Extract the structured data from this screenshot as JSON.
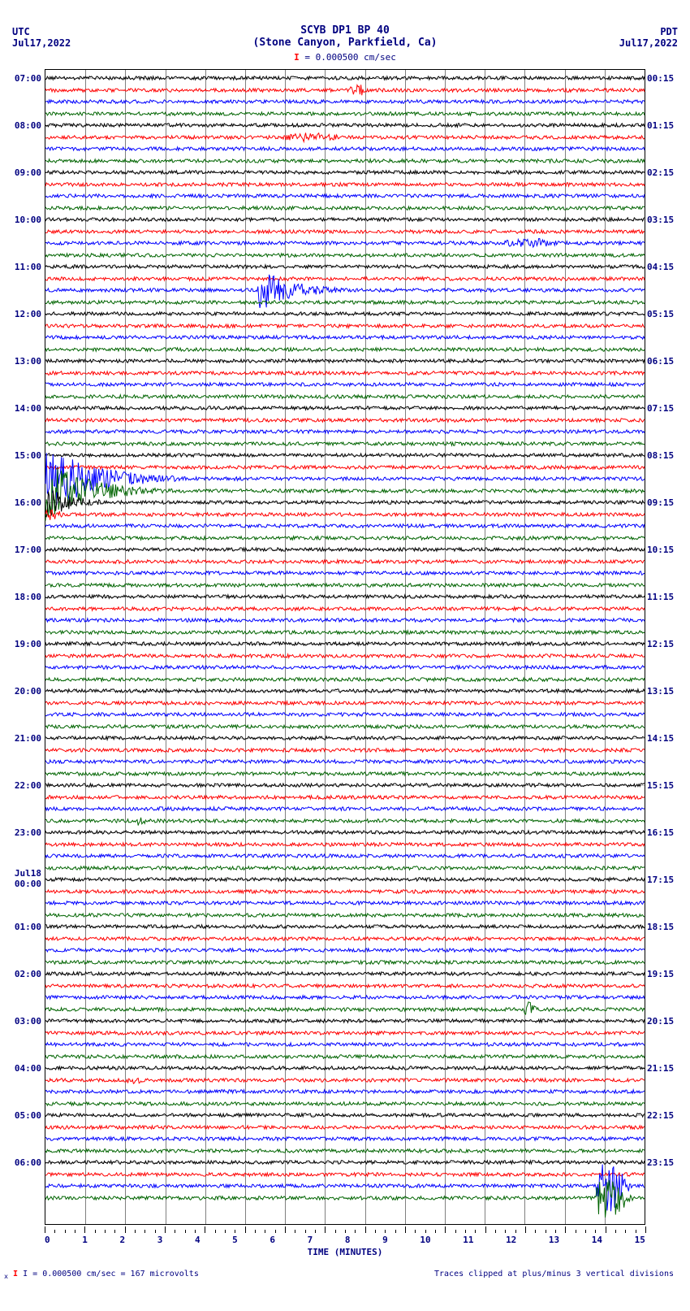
{
  "title_line1": "SCYB DP1 BP 40",
  "title_line2": "(Stone Canyon, Parkfield, Ca)",
  "left_tz": "UTC",
  "left_date": "Jul17,2022",
  "right_tz": "PDT",
  "right_date": "Jul17,2022",
  "scale_text": "= 0.000500 cm/sec",
  "x_axis_label": "TIME (MINUTES)",
  "footer_left": "I = 0.000500 cm/sec =    167 microvolts",
  "footer_right": "Traces clipped at plus/minus 3 vertical divisions",
  "x_ticks": [
    "0",
    "1",
    "2",
    "3",
    "4",
    "5",
    "6",
    "7",
    "8",
    "9",
    "10",
    "11",
    "12",
    "13",
    "14",
    "15"
  ],
  "colors": {
    "black": "#000000",
    "red": "#ff0000",
    "blue": "#0000ff",
    "green": "#006400",
    "grid": "#808080",
    "navy": "#000080"
  },
  "grid_v_minutes": [
    1,
    2,
    3,
    4,
    5,
    6,
    7,
    8,
    9,
    10,
    11,
    12,
    13,
    14
  ],
  "grid_h_rows": [
    0,
    4,
    8,
    12,
    16,
    20,
    24,
    28,
    32,
    36,
    40,
    44,
    48,
    52,
    56,
    60,
    64,
    68,
    72,
    76,
    80,
    84,
    88,
    92
  ],
  "traces": {
    "count": 96,
    "color_cycle": [
      "black",
      "red",
      "blue",
      "green"
    ],
    "row_height": 14.5,
    "top_offset": 10,
    "base_amp": 2.2
  },
  "events": [
    {
      "row": 1,
      "start": 7.6,
      "end": 8.4,
      "amp": 8,
      "shape": "burst"
    },
    {
      "row": 5,
      "start": 6.0,
      "end": 8.5,
      "amp": 6,
      "shape": "burst"
    },
    {
      "row": 14,
      "start": 11.5,
      "end": 14.0,
      "amp": 6,
      "shape": "burst"
    },
    {
      "row": 18,
      "start": 5.3,
      "end": 8.5,
      "amp": 28,
      "shape": "decay"
    },
    {
      "row": 34,
      "start": 0.0,
      "end": 4.5,
      "amp": 42,
      "shape": "decay"
    },
    {
      "row": 35,
      "start": 0.0,
      "end": 4.0,
      "amp": 38,
      "shape": "decay"
    },
    {
      "row": 36,
      "start": 0.0,
      "end": 2.5,
      "amp": 20,
      "shape": "decay"
    },
    {
      "row": 37,
      "start": 0.0,
      "end": 1.5,
      "amp": 10,
      "shape": "decay"
    },
    {
      "row": 63,
      "start": 2.2,
      "end": 2.8,
      "amp": 6,
      "shape": "burst"
    },
    {
      "row": 79,
      "start": 12.0,
      "end": 12.5,
      "amp": 10,
      "shape": "burst"
    },
    {
      "row": 85,
      "start": 2.0,
      "end": 2.8,
      "amp": 5,
      "shape": "burst"
    },
    {
      "row": 94,
      "start": 13.8,
      "end": 15.0,
      "amp": 35,
      "shape": "burst"
    },
    {
      "row": 95,
      "start": 13.8,
      "end": 15.0,
      "amp": 30,
      "shape": "burst"
    }
  ],
  "left_labels": [
    {
      "row": 0,
      "text": "07:00"
    },
    {
      "row": 4,
      "text": "08:00"
    },
    {
      "row": 8,
      "text": "09:00"
    },
    {
      "row": 12,
      "text": "10:00"
    },
    {
      "row": 16,
      "text": "11:00"
    },
    {
      "row": 20,
      "text": "12:00"
    },
    {
      "row": 24,
      "text": "13:00"
    },
    {
      "row": 28,
      "text": "14:00"
    },
    {
      "row": 32,
      "text": "15:00"
    },
    {
      "row": 36,
      "text": "16:00"
    },
    {
      "row": 40,
      "text": "17:00"
    },
    {
      "row": 44,
      "text": "18:00"
    },
    {
      "row": 48,
      "text": "19:00"
    },
    {
      "row": 52,
      "text": "20:00"
    },
    {
      "row": 56,
      "text": "21:00"
    },
    {
      "row": 60,
      "text": "22:00"
    },
    {
      "row": 64,
      "text": "23:00"
    },
    {
      "row": 68,
      "text": "Jul18\n00:00"
    },
    {
      "row": 72,
      "text": "01:00"
    },
    {
      "row": 76,
      "text": "02:00"
    },
    {
      "row": 80,
      "text": "03:00"
    },
    {
      "row": 84,
      "text": "04:00"
    },
    {
      "row": 88,
      "text": "05:00"
    },
    {
      "row": 92,
      "text": "06:00"
    }
  ],
  "right_labels": [
    {
      "row": 0,
      "text": "00:15"
    },
    {
      "row": 4,
      "text": "01:15"
    },
    {
      "row": 8,
      "text": "02:15"
    },
    {
      "row": 12,
      "text": "03:15"
    },
    {
      "row": 16,
      "text": "04:15"
    },
    {
      "row": 20,
      "text": "05:15"
    },
    {
      "row": 24,
      "text": "06:15"
    },
    {
      "row": 28,
      "text": "07:15"
    },
    {
      "row": 32,
      "text": "08:15"
    },
    {
      "row": 36,
      "text": "09:15"
    },
    {
      "row": 40,
      "text": "10:15"
    },
    {
      "row": 44,
      "text": "11:15"
    },
    {
      "row": 48,
      "text": "12:15"
    },
    {
      "row": 52,
      "text": "13:15"
    },
    {
      "row": 56,
      "text": "14:15"
    },
    {
      "row": 60,
      "text": "15:15"
    },
    {
      "row": 64,
      "text": "16:15"
    },
    {
      "row": 68,
      "text": "17:15"
    },
    {
      "row": 72,
      "text": "18:15"
    },
    {
      "row": 76,
      "text": "19:15"
    },
    {
      "row": 80,
      "text": "20:15"
    },
    {
      "row": 84,
      "text": "21:15"
    },
    {
      "row": 88,
      "text": "22:15"
    },
    {
      "row": 92,
      "text": "23:15"
    }
  ]
}
